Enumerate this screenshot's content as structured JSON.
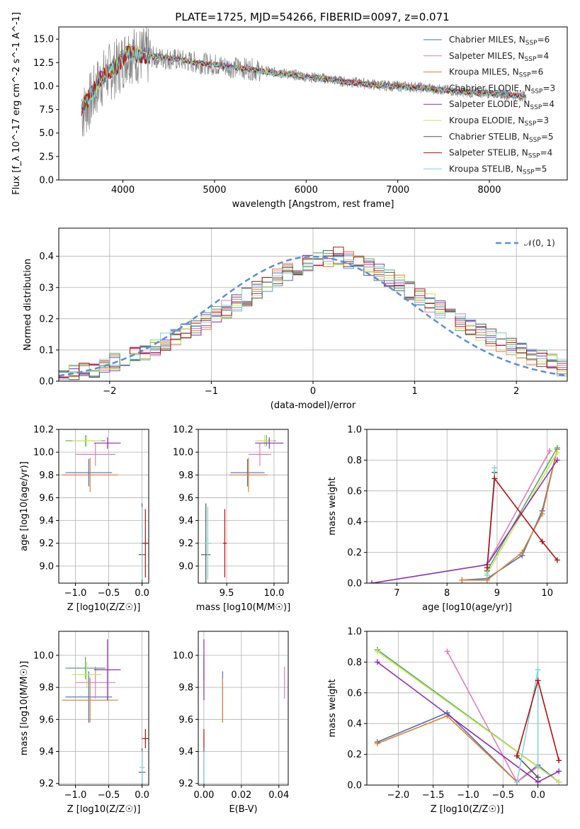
{
  "figure": {
    "title": "PLATE=1725, MJD=54266, FIBERID=0097, z=0.071"
  },
  "colors": {
    "Chabrier MILES": "#4c72b0",
    "Salpeter MILES": "#dd7fb7",
    "Kroupa MILES": "#dd7f33",
    "Chabrier ELODIE": "#55a868",
    "Salpeter ELODIE": "#8c2db0",
    "Kroupa ELODIE": "#c9e55a",
    "Chabrier STELIB": "#555555",
    "Salpeter STELIB": "#b01010",
    "Kroupa STELIB": "#7fd6d9"
  },
  "legend_order": [
    "Chabrier MILES",
    "Salpeter MILES",
    "Kroupa MILES",
    "Chabrier ELODIE",
    "Salpeter ELODIE",
    "Kroupa ELODIE",
    "Chabrier STELIB",
    "Salpeter STELIB",
    "Kroupa STELIB"
  ],
  "chart_data": [
    {
      "id": "spectrum",
      "type": "line",
      "xlabel": "wavelength [Angstrom, rest frame]",
      "ylabel": "Flux [f_λ 10^-17 erg cm^-2 s^-1 A^-1]",
      "xlim": [
        3300,
        8850
      ],
      "ylim": [
        0,
        16.3
      ],
      "xticks": [
        4000,
        5000,
        6000,
        7000,
        8000
      ],
      "yticks": [
        0.0,
        2.5,
        5.0,
        7.5,
        10.0,
        12.5,
        15.0
      ],
      "grid": false,
      "legend_placement": "top-right",
      "legend": [
        {
          "base": "Chabrier MILES, N",
          "sub": "SSP",
          "tail": "=6"
        },
        {
          "base": "Salpeter MILES, N",
          "sub": "SSP",
          "tail": "=4"
        },
        {
          "base": "Kroupa MILES, N",
          "sub": "SSP",
          "tail": "=6"
        },
        {
          "base": "Chabrier ELODIE, N",
          "sub": "SSP",
          "tail": "=3"
        },
        {
          "base": "Salpeter ELODIE, N",
          "sub": "SSP",
          "tail": "=4"
        },
        {
          "base": "Kroupa ELODIE, N",
          "sub": "SSP",
          "tail": "=3"
        },
        {
          "base": "Chabrier STELIB, N",
          "sub": "SSP",
          "tail": "=5"
        },
        {
          "base": "Salpeter STELIB, N",
          "sub": "SSP",
          "tail": "=4"
        },
        {
          "base": "Kroupa STELIB, N",
          "sub": "SSP",
          "tail": "=5"
        }
      ],
      "data_series": {
        "name": "data",
        "color": "#808080",
        "x": [
          3550,
          3650,
          3750,
          3850,
          3950,
          4050,
          4200,
          4400,
          4600,
          4800,
          5000,
          5200,
          5400,
          5600,
          5800,
          6000,
          6200,
          6400,
          6600,
          6800,
          7000,
          7200,
          7400,
          7600,
          7800,
          8000,
          8200,
          8400
        ],
        "y": [
          7.0,
          8.5,
          10.5,
          11.5,
          12.0,
          13.5,
          13.2,
          13.0,
          12.8,
          12.5,
          12.3,
          12.0,
          11.8,
          11.5,
          11.3,
          11.0,
          10.8,
          10.5,
          10.3,
          10.1,
          10.0,
          9.9,
          9.7,
          9.5,
          9.3,
          9.3,
          9.1,
          8.9
        ]
      },
      "model_series": {
        "x": [
          3550,
          3650,
          3750,
          3850,
          3950,
          4050,
          4200,
          4400,
          4600,
          4800,
          5000,
          5200,
          5400,
          5600,
          5800,
          6000,
          6200,
          6400,
          6600,
          6800,
          7000,
          7200,
          7400,
          7600,
          7800,
          8000,
          8200,
          8400
        ],
        "y": [
          7.8,
          9.2,
          10.9,
          11.7,
          12.4,
          13.8,
          13.4,
          13.2,
          13.0,
          12.6,
          12.4,
          12.1,
          11.9,
          11.6,
          11.4,
          11.1,
          10.9,
          10.6,
          10.4,
          10.2,
          10.1,
          10.0,
          9.8,
          9.6,
          9.4,
          9.3,
          9.2,
          9.0
        ]
      }
    },
    {
      "id": "residuals",
      "type": "line",
      "xlabel": "(data-model)/error",
      "ylabel": "Normed distribution",
      "xlim": [
        -2.5,
        2.5
      ],
      "ylim": [
        0,
        0.49
      ],
      "xticks": [
        -2,
        -1,
        0,
        1,
        2
      ],
      "yticks": [
        0.0,
        0.1,
        0.2,
        0.3,
        0.4
      ],
      "grid": true,
      "legend_placement": "top-right",
      "legend": [
        {
          "name": "𝒩(0, 1)",
          "color": "#5b8fd0",
          "style": "dashed"
        }
      ],
      "bin_edges_start": -2.5,
      "bin_width": 0.1,
      "hist": [
        0.02,
        0.025,
        0.03,
        0.04,
        0.045,
        0.06,
        0.07,
        0.08,
        0.095,
        0.11,
        0.125,
        0.14,
        0.155,
        0.175,
        0.19,
        0.21,
        0.23,
        0.25,
        0.27,
        0.29,
        0.31,
        0.33,
        0.35,
        0.365,
        0.38,
        0.39,
        0.395,
        0.4,
        0.39,
        0.38,
        0.365,
        0.35,
        0.33,
        0.31,
        0.29,
        0.27,
        0.25,
        0.23,
        0.21,
        0.19,
        0.175,
        0.155,
        0.14,
        0.125,
        0.11,
        0.095,
        0.08,
        0.07,
        0.06,
        0.045
      ]
    },
    {
      "id": "age-vs-Z",
      "type": "scatter",
      "xlabel": "Z [log10(Z/Z☉)]",
      "ylabel": "age  [log10(age/yr)]",
      "xlim": [
        -1.25,
        0.1
      ],
      "ylim": [
        8.85,
        10.2
      ],
      "xticks": [
        -1.0,
        -0.5,
        0.0
      ],
      "yticks": [
        9.0,
        9.2,
        9.4,
        9.6,
        9.8,
        10.0,
        10.2
      ],
      "grid": true,
      "points": [
        {
          "s": "Chabrier MILES",
          "x": -0.8,
          "y": 9.82,
          "xerr": 0.35,
          "yerr": 0.12
        },
        {
          "s": "Kroupa MILES",
          "x": -0.78,
          "y": 9.8,
          "xerr": 0.42,
          "yerr": 0.15
        },
        {
          "s": "Salpeter MILES",
          "x": -0.7,
          "y": 9.98,
          "xerr": 0.3,
          "yerr": 0.1
        },
        {
          "s": "Chabrier ELODIE",
          "x": -0.85,
          "y": 10.1,
          "xerr": 0.3,
          "yerr": 0.05
        },
        {
          "s": "Kroupa ELODIE",
          "x": -0.83,
          "y": 10.1,
          "xerr": 0.22,
          "yerr": 0.05
        },
        {
          "s": "Salpeter ELODIE",
          "x": -0.52,
          "y": 10.08,
          "xerr": 0.2,
          "yerr": 0.05
        },
        {
          "s": "Chabrier STELIB",
          "x": 0.0,
          "y": 9.1,
          "xerr": 0.05,
          "yerr": 0.45
        },
        {
          "s": "Kroupa STELIB",
          "x": 0.0,
          "y": 9.2,
          "xerr": 0.04,
          "yerr": 0.32
        },
        {
          "s": "Salpeter STELIB",
          "x": 0.05,
          "y": 9.2,
          "xerr": 0.05,
          "yerr": 0.3
        }
      ]
    },
    {
      "id": "age-vs-mass",
      "type": "scatter",
      "xlabel": "mass [log10(M/M☉)]",
      "ylabel": "",
      "xlim": [
        9.2,
        10.15
      ],
      "ylim": [
        8.85,
        10.2
      ],
      "xticks": [
        9.5,
        10.0
      ],
      "yticks": [
        9.0,
        9.2,
        9.4,
        9.6,
        9.8,
        10.0,
        10.2
      ],
      "grid": true,
      "points": [
        {
          "s": "Chabrier MILES",
          "x": 9.72,
          "y": 9.82,
          "xerr": 0.18,
          "yerr": 0.12
        },
        {
          "s": "Kroupa MILES",
          "x": 9.73,
          "y": 9.8,
          "xerr": 0.2,
          "yerr": 0.15
        },
        {
          "s": "Salpeter MILES",
          "x": 9.85,
          "y": 9.98,
          "xerr": 0.12,
          "yerr": 0.1
        },
        {
          "s": "Chabrier ELODIE",
          "x": 9.92,
          "y": 10.1,
          "xerr": 0.1,
          "yerr": 0.05
        },
        {
          "s": "Kroupa ELODIE",
          "x": 9.9,
          "y": 10.1,
          "xerr": 0.1,
          "yerr": 0.05
        },
        {
          "s": "Salpeter ELODIE",
          "x": 9.95,
          "y": 10.08,
          "xerr": 0.15,
          "yerr": 0.05
        },
        {
          "s": "Chabrier STELIB",
          "x": 9.28,
          "y": 9.1,
          "xerr": 0.05,
          "yerr": 0.45
        },
        {
          "s": "Kroupa STELIB",
          "x": 9.3,
          "y": 9.2,
          "xerr": 0.04,
          "yerr": 0.32
        },
        {
          "s": "Salpeter STELIB",
          "x": 9.48,
          "y": 9.2,
          "xerr": 0.02,
          "yerr": 0.3
        }
      ]
    },
    {
      "id": "weight-vs-age",
      "type": "line",
      "xlabel": "age  [log10(age/yr)]",
      "ylabel": "mass weight",
      "xlim": [
        6.4,
        10.4
      ],
      "ylim": [
        0,
        1.0
      ],
      "xticks": [
        7,
        8,
        9,
        10
      ],
      "yticks": [
        0.0,
        0.2,
        0.4,
        0.6,
        0.8,
        1.0
      ],
      "grid": true,
      "series": [
        {
          "s": "Chabrier MILES",
          "x": [
            8.3,
            8.8,
            9.5,
            9.9,
            10.2
          ],
          "y": [
            0.02,
            0.03,
            0.18,
            0.47,
            0.87
          ]
        },
        {
          "s": "Kroupa MILES",
          "x": [
            8.3,
            8.8,
            9.5,
            9.9,
            10.2
          ],
          "y": [
            0.02,
            0.02,
            0.2,
            0.45,
            0.87
          ]
        },
        {
          "s": "Salpeter MILES",
          "x": [
            8.8,
            10.05
          ],
          "y": [
            0.12,
            0.86
          ]
        },
        {
          "s": "Chabrier ELODIE",
          "x": [
            8.8,
            10.2
          ],
          "y": [
            0.08,
            0.88
          ]
        },
        {
          "s": "Kroupa ELODIE",
          "x": [
            8.8,
            10.2
          ],
          "y": [
            0.06,
            0.85
          ]
        },
        {
          "s": "Salpeter ELODIE",
          "x": [
            6.5,
            8.8,
            10.2
          ],
          "y": [
            0.0,
            0.12,
            0.8
          ]
        },
        {
          "s": "Chabrier STELIB",
          "x": [
            8.8,
            8.95
          ],
          "y": [
            0.08,
            0.72
          ]
        },
        {
          "s": "Kroupa STELIB",
          "x": [
            8.8,
            8.95
          ],
          "y": [
            0.05,
            0.75
          ]
        },
        {
          "s": "Salpeter STELIB",
          "x": [
            8.8,
            8.95,
            9.9,
            10.2
          ],
          "y": [
            0.1,
            0.68,
            0.27,
            0.15
          ]
        }
      ]
    },
    {
      "id": "mass-vs-Z",
      "type": "scatter",
      "xlabel": "Z [log10(Z/Z☉)]",
      "ylabel": "mass [log10(M/M☉)]",
      "xlim": [
        -1.25,
        0.1
      ],
      "ylim": [
        9.19,
        10.15
      ],
      "xticks": [
        -1.0,
        -0.5,
        0.0
      ],
      "yticks": [
        9.2,
        9.4,
        9.6,
        9.8,
        10.0
      ],
      "grid": true,
      "points": [
        {
          "s": "Chabrier MILES",
          "x": -0.8,
          "y": 9.74,
          "xerr": 0.35,
          "yerr": 0.16
        },
        {
          "s": "Kroupa MILES",
          "x": -0.78,
          "y": 9.72,
          "xerr": 0.42,
          "yerr": 0.14
        },
        {
          "s": "Salpeter MILES",
          "x": -0.7,
          "y": 9.83,
          "xerr": 0.3,
          "yerr": 0.1
        },
        {
          "s": "Chabrier ELODIE",
          "x": -0.85,
          "y": 9.92,
          "xerr": 0.3,
          "yerr": 0.07
        },
        {
          "s": "Kroupa ELODIE",
          "x": -0.83,
          "y": 9.88,
          "xerr": 0.22,
          "yerr": 0.08
        },
        {
          "s": "Salpeter ELODIE",
          "x": -0.52,
          "y": 9.91,
          "xerr": 0.2,
          "yerr": 0.19
        },
        {
          "s": "Chabrier STELIB",
          "x": 0.0,
          "y": 9.27,
          "xerr": 0.05,
          "yerr": 0.15
        },
        {
          "s": "Kroupa STELIB",
          "x": 0.0,
          "y": 9.3,
          "xerr": 0.04,
          "yerr": 0.1
        },
        {
          "s": "Salpeter STELIB",
          "x": 0.05,
          "y": 9.48,
          "xerr": 0.05,
          "yerr": 0.06
        }
      ]
    },
    {
      "id": "mass-vs-ebv",
      "type": "scatter",
      "xlabel": "E(B-V)",
      "ylabel": "",
      "xlim": [
        -0.003,
        0.045
      ],
      "ylim": [
        9.19,
        10.15
      ],
      "xticks": [
        0.0,
        0.02,
        0.04
      ],
      "yticks": [
        9.2,
        9.4,
        9.6,
        9.8,
        10.0
      ],
      "grid": true,
      "points": [
        {
          "s": "Chabrier MILES",
          "x": 0.01,
          "y": 9.74,
          "xerr": 0.0,
          "yerr": 0.16
        },
        {
          "s": "Kroupa MILES",
          "x": 0.01,
          "y": 9.72,
          "xerr": 0.0,
          "yerr": 0.14
        },
        {
          "s": "Salpeter MILES",
          "x": 0.043,
          "y": 9.83,
          "xerr": 0.0,
          "yerr": 0.1
        },
        {
          "s": "Chabrier ELODIE",
          "x": 0.0,
          "y": 9.92,
          "xerr": 0.0,
          "yerr": 0.07
        },
        {
          "s": "Kroupa ELODIE",
          "x": 0.0,
          "y": 9.88,
          "xerr": 0.0,
          "yerr": 0.08
        },
        {
          "s": "Salpeter ELODIE",
          "x": 0.0,
          "y": 9.91,
          "xerr": 0.0,
          "yerr": 0.19
        },
        {
          "s": "Chabrier STELIB",
          "x": 0.0,
          "y": 9.27,
          "xerr": 0.0,
          "yerr": 0.15
        },
        {
          "s": "Kroupa STELIB",
          "x": 0.0,
          "y": 9.3,
          "xerr": 0.0,
          "yerr": 0.1
        },
        {
          "s": "Salpeter STELIB",
          "x": 0.0,
          "y": 9.48,
          "xerr": 0.0,
          "yerr": 0.06
        }
      ]
    },
    {
      "id": "weight-vs-Z",
      "type": "line",
      "xlabel": "Z [log10(Z/Z☉)]",
      "ylabel": "mass weight",
      "xlim": [
        -2.45,
        0.42
      ],
      "ylim": [
        0,
        1.0
      ],
      "xticks": [
        -2.0,
        -1.5,
        -1.0,
        -0.5,
        0.0
      ],
      "yticks": [
        0.0,
        0.2,
        0.4,
        0.6,
        0.8,
        1.0
      ],
      "grid": true,
      "series": [
        {
          "s": "Chabrier MILES",
          "x": [
            -2.3,
            -1.3,
            -0.3,
            0.0,
            0.3
          ],
          "y": [
            0.28,
            0.47,
            0.02,
            0.13,
            0.02
          ]
        },
        {
          "s": "Kroupa MILES",
          "x": [
            -2.3,
            -1.3,
            -0.3,
            0.0,
            0.3
          ],
          "y": [
            0.27,
            0.45,
            0.02,
            0.12,
            0.02
          ]
        },
        {
          "s": "Salpeter MILES",
          "x": [
            -1.3,
            -0.3,
            0.0
          ],
          "y": [
            0.87,
            0.02,
            0.12
          ]
        },
        {
          "s": "Chabrier ELODIE",
          "x": [
            -2.3,
            0.3
          ],
          "y": [
            0.88,
            0.02
          ]
        },
        {
          "s": "Kroupa ELODIE",
          "x": [
            -2.3,
            0.3
          ],
          "y": [
            0.87,
            0.02
          ]
        },
        {
          "s": "Salpeter ELODIE",
          "x": [
            -2.3,
            0.0,
            0.3
          ],
          "y": [
            0.8,
            0.02,
            0.09
          ]
        },
        {
          "s": "Chabrier STELIB",
          "x": [
            -0.3,
            0.0
          ],
          "y": [
            0.19,
            0.05
          ]
        },
        {
          "s": "Kroupa STELIB",
          "x": [
            -0.3,
            0.0,
            0.0
          ],
          "y": [
            0.02,
            0.75,
            0.12
          ]
        },
        {
          "s": "Salpeter STELIB",
          "x": [
            -0.3,
            0.0,
            0.3
          ],
          "y": [
            0.19,
            0.68,
            0.16
          ]
        }
      ]
    }
  ]
}
